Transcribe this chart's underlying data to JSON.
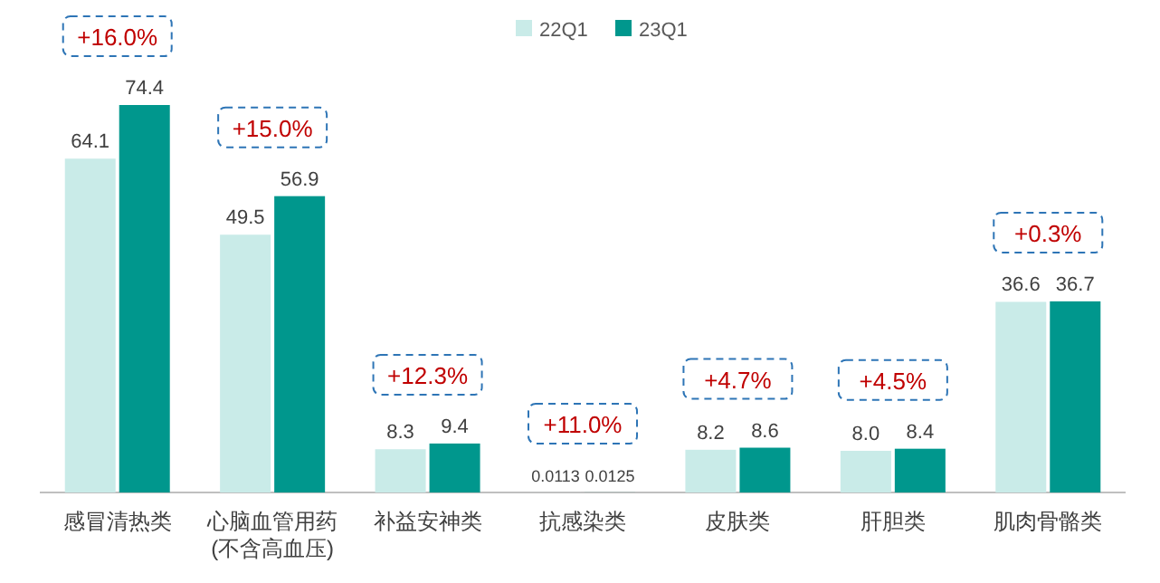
{
  "chart_data": {
    "type": "bar",
    "categories": [
      "感冒清热类",
      "心脑血管用药\n(不含高血压)",
      "补益安神类",
      "抗感染类",
      "皮肤类",
      "肝胆类",
      "肌肉骨骼类"
    ],
    "series": [
      {
        "name": "22Q1",
        "color": "#c9ebe8",
        "values": [
          64.1,
          49.5,
          8.3,
          0.0113,
          8.2,
          8.0,
          36.6
        ],
        "value_labels": [
          "64.1",
          "49.5",
          "8.3",
          "0.0113",
          "8.2",
          "8.0",
          "36.6"
        ]
      },
      {
        "name": "23Q1",
        "color": "#00978d",
        "values": [
          74.4,
          56.9,
          9.4,
          0.0125,
          8.6,
          8.4,
          36.7
        ],
        "value_labels": [
          "74.4",
          "56.9",
          "9.4",
          "0.0125",
          "8.6",
          "8.4",
          "36.7"
        ]
      }
    ],
    "annotations": [
      "+16.0%",
      "+15.0%",
      "+12.3%",
      "+11.0%",
      "+4.7%",
      "+4.5%",
      "+0.3%"
    ],
    "legend": "top"
  }
}
